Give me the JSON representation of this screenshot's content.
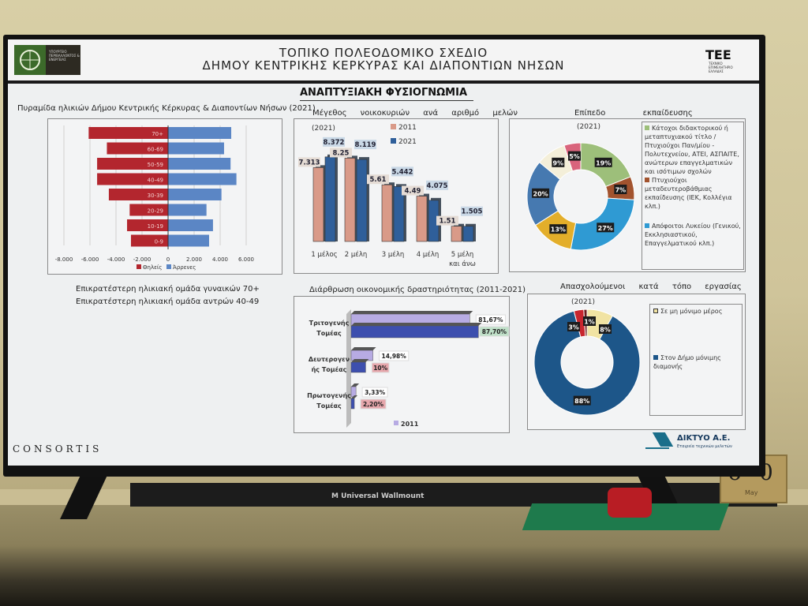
{
  "scene": {
    "wallmount_box": "M Universal Wallmount",
    "calendar": {
      "digit1": "6",
      "digit2": "0",
      "month": "May"
    }
  },
  "header": {
    "ministry_logo": "ΥΠΟΥΡΓΕΙΟ ΠΕΡΙΒΑΛΛΟΝΤΟΣ & ΕΝΕΡΓΕΙΑΣ",
    "title_line1": "ΤΟΠΙΚΟ ΠΟΛΕΟΔΟΜΙΚΟ ΣΧΕΔΙΟ",
    "title_line2": "ΔΗΜΟΥ ΚΕΝΤΡΙΚΗΣ ΚΕΡΚΥΡΑΣ ΚΑΙ ΔΙΑΠΟΝΤΙΩΝ ΝΗΣΩΝ",
    "tee_logo": "ΤΕΕ",
    "tee_sub": "ΤΕΧΝΙΚΟ ΕΠΙΜΕΛΗΤΗΡΙΟ ΕΛΛΑΔΑΣ"
  },
  "section_title": "ΑΝΑΠΤΥΞΙΑΚΗ ΦΥΣΙΟΓΝΩΜΙΑ",
  "notes": [
    "Επικρατέστερη ηλικιακή ομάδα γυναικών 70+",
    "Επικρατέστερη ηλικιακή ομάδα αντρών 40-49"
  ],
  "footer": {
    "consortis": "CONSORTIS",
    "diktyo": "ΔΙΚΤΥΟ Α.Ε.",
    "diktyo_sub": "Εταιρεία τεχνικών μελετών"
  },
  "chart_data": [
    {
      "type": "bar",
      "orientation": "horizontal-pyramid",
      "title": "Πυραμίδα ηλικιών Δήμου Κεντρικής Κέρκυρας & Διαποντίων Νήσων (2021)",
      "categories": [
        "70+",
        "60-69",
        "50-59",
        "40-49",
        "30-39",
        "20-29",
        "10-19",
        "0-9"
      ],
      "series": [
        {
          "name": "Θηλείς",
          "color": "#b3262e",
          "values": [
            -6100,
            -4700,
            -5450,
            -5450,
            -4550,
            -2950,
            -3150,
            -2850
          ]
        },
        {
          "name": "Άρρενες",
          "color": "#5b86c5",
          "values": [
            4850,
            4300,
            4800,
            5250,
            4100,
            2950,
            3450,
            3150
          ]
        }
      ],
      "xticks": [
        "-8.000",
        "-6.000",
        "-4.000",
        "-2.000",
        "0",
        "2.000",
        "4.000",
        "6.000"
      ],
      "xlim": [
        -8000,
        6000
      ],
      "grid": true,
      "legend": "bottom"
    },
    {
      "type": "bar",
      "title": "Μέγεθος νοικοκυριών ανά αριθμό μελών",
      "subtitle": "(2021)",
      "categories": [
        "1 μέλος",
        "2 μέλη",
        "3 μέλη",
        "4 μέλη",
        "5 μέλη και άνω"
      ],
      "series": [
        {
          "name": "2011",
          "color": "#d99a88",
          "values": [
            7313,
            8250,
            5610,
            4490,
            1510
          ],
          "labels": [
            "7.313",
            "8.25",
            "5.61",
            "4.49",
            "1.51"
          ]
        },
        {
          "name": "2021",
          "color": "#2f5f9a",
          "values": [
            8372,
            8119,
            5442,
            4075,
            1505
          ],
          "labels": [
            "8.372",
            "8.119",
            "5.442",
            "4.075",
            "1.505"
          ]
        }
      ],
      "legend": "top-right"
    },
    {
      "type": "pie",
      "variant": "donut",
      "title": "Επίπεδο εκπαίδευσης",
      "subtitle": "(2021)",
      "slices": [
        {
          "value": 19,
          "label": "19%",
          "color": "#9dbf7a"
        },
        {
          "value": 7,
          "label": "7%",
          "color": "#a2532e"
        },
        {
          "value": 27,
          "label": "27%",
          "color": "#2f9ad3"
        },
        {
          "value": 13,
          "label": "13%",
          "color": "#e3ae2a"
        },
        {
          "value": 20,
          "label": "20%",
          "color": "#4679b0"
        },
        {
          "value": 9,
          "label": "9%",
          "color": "#f4efd9"
        },
        {
          "value": 5,
          "label": "5%",
          "color": "#d9647c"
        }
      ],
      "legend_entries": [
        {
          "color": "#9dbf7a",
          "text": "Κάτοχοι διδακτορικού ή μεταπτυχιακού τίτλο / Πτυχιούχοι Παν/μίου - Πολυτεχνείου, ΑΤΕΙ, ΑΣΠΑΙΤΕ, ανώτερων επαγγελματικών και ισότιμων σχολών"
        },
        {
          "color": "#a2532e",
          "text": "Πτυχιούχοι μεταδευτεροβάθμιας εκπαίδευσης (ΙΕΚ, Κολλέγια κλπ.)"
        },
        {
          "color": "#2f9ad3",
          "text": "Απόφοιτοι Λυκείου (Γενικού, Εκκλησιαστικού, Επαγγελματικού κλπ.)"
        }
      ],
      "legend": "right"
    },
    {
      "type": "bar",
      "orientation": "horizontal",
      "title": "Διάρθρωση οικονομικής δραστηριότητας (2011-2021)",
      "categories": [
        "Τριτογενής Τομέας",
        "Δευτερογενής Τομέας",
        "Πρωτογενής Τομέας"
      ],
      "category_display": [
        "Τριτογενής|Τομέας",
        "Δευτερογεν|ής Τομέας",
        "Πρωτογενής|Τομέας"
      ],
      "series": [
        {
          "name": "2011",
          "color": "#b7abe3",
          "values": [
            81.67,
            14.98,
            3.33
          ],
          "labels": [
            "81,67%",
            "14,98%",
            "3,33%"
          ]
        },
        {
          "color": "#3d4fae",
          "values": [
            87.7,
            10,
            2.2
          ],
          "labels": [
            "87,70%",
            "10%",
            "2,20%"
          ],
          "label_colors": [
            "#bfe0c8",
            "#e7a7ac",
            "#e7a7ac"
          ]
        }
      ],
      "legend": "bottom"
    },
    {
      "type": "pie",
      "variant": "donut",
      "title": "Απασχολούμενοι κατά τόπο εργασίας",
      "subtitle": "(2021)",
      "slices": [
        {
          "value": 8,
          "label": "8%",
          "color": "#f1e3a3"
        },
        {
          "value": 88,
          "label": "88%",
          "color": "#1d5689"
        },
        {
          "value": 3,
          "label": "3%",
          "color": "#c8262e"
        },
        {
          "value": 1,
          "label": "1%",
          "color": "#6a1a1a"
        }
      ],
      "legend_entries": [
        {
          "color": "#f1e3a3",
          "text": "Σε μη μόνιμο μέρος"
        },
        {
          "color": "#1d5689",
          "text": "Στον Δήμο μόνιμης διαμονής"
        }
      ],
      "legend": "right"
    }
  ]
}
